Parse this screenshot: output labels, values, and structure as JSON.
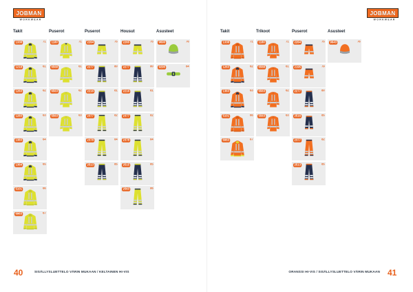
{
  "logo": {
    "brand": "JOBMAN",
    "sub": "WORKWEAR"
  },
  "palette": {
    "accent": "#e8611d",
    "yellow": "#dde02f",
    "yellow_dark": "#c2c832",
    "orange": "#f26f21",
    "orange_dark": "#d85a14",
    "navy": "#25304d",
    "green": "#9acb3c",
    "gray": "#9aa0a6",
    "stripe": "#c9cdd3",
    "stripe_on_dark": "#dfe3e8",
    "cell_bg": "#ececec",
    "header_text": "#1d2733"
  },
  "pages": [
    {
      "side": "left",
      "page_number": "40",
      "footer_caption": "SISÄLLYSLUETTELO VÄRIN MUKAAN / KELTAINEN HI-VIS",
      "columns": [
        {
          "label": "Takit"
        },
        {
          "label": "Puserot"
        },
        {
          "label": "Puserot"
        },
        {
          "label": "Housut"
        },
        {
          "label": "Asusteet"
        }
      ],
      "products": [
        {
          "code": "1338",
          "ref": "71",
          "col": 1,
          "row": 1,
          "type": "jacket",
          "main": "yellow",
          "accent2": "navy"
        },
        {
          "code": "1218",
          "ref": "61",
          "col": 1,
          "row": 2,
          "type": "jacket",
          "main": "yellow",
          "accent2": "navy"
        },
        {
          "code": "1263",
          "ref": "62",
          "col": 1,
          "row": 3,
          "type": "jacket",
          "main": "yellow",
          "accent2": "navy"
        },
        {
          "code": "1283",
          "ref": "63",
          "col": 1,
          "row": 4,
          "type": "jacket",
          "main": "yellow",
          "accent2": "navy"
        },
        {
          "code": "1383",
          "ref": "64",
          "col": 1,
          "row": 5,
          "type": "jacket",
          "main": "yellow",
          "accent2": "navy"
        },
        {
          "code": "1364",
          "ref": "65",
          "col": 1,
          "row": 6,
          "type": "jacket",
          "main": "yellow",
          "accent2": "navy"
        },
        {
          "code": "5101",
          "ref": "66",
          "col": 1,
          "row": 7,
          "type": "jacket",
          "main": "yellow",
          "accent2": "yellow_dark"
        },
        {
          "code": "6963",
          "ref": "67",
          "col": 1,
          "row": 8,
          "type": "jacket",
          "main": "yellow",
          "accent2": "yellow_dark"
        },
        {
          "code": "1180",
          "ref": "71",
          "col": 2,
          "row": 1,
          "type": "shirt",
          "main": "yellow",
          "accent2": "navy"
        },
        {
          "code": "6568",
          "ref": "61",
          "col": 2,
          "row": 2,
          "type": "shirt",
          "main": "yellow",
          "accent2": "yellow_dark"
        },
        {
          "code": "6563",
          "ref": "62",
          "col": 2,
          "row": 3,
          "type": "shirt",
          "main": "yellow",
          "accent2": "yellow_dark"
        },
        {
          "code": "5563",
          "ref": "63",
          "col": 2,
          "row": 4,
          "type": "shirt",
          "main": "yellow",
          "accent2": "yellow_dark"
        },
        {
          "code": "2264",
          "ref": "75",
          "col": 3,
          "row": 1,
          "type": "shorts",
          "main": "yellow",
          "accent2": "navy"
        },
        {
          "code": "2277",
          "ref": "80",
          "col": 3,
          "row": 2,
          "type": "trousers",
          "main": "navy",
          "accent2": "yellow"
        },
        {
          "code": "2216",
          "ref": "81",
          "col": 3,
          "row": 3,
          "type": "trousers",
          "main": "navy",
          "accent2": "yellow"
        },
        {
          "code": "2377",
          "ref": "82",
          "col": 3,
          "row": 4,
          "type": "trousers",
          "main": "yellow",
          "accent2": "navy"
        },
        {
          "code": "2378",
          "ref": "84",
          "col": 3,
          "row": 5,
          "type": "trousers",
          "main": "yellow",
          "accent2": "navy"
        },
        {
          "code": "2513",
          "ref": "85",
          "col": 3,
          "row": 6,
          "type": "trousers",
          "main": "navy",
          "accent2": "yellow"
        },
        {
          "code": "2265",
          "ref": "75",
          "col": 4,
          "row": 1,
          "type": "shorts",
          "main": "yellow",
          "accent2": "navy"
        },
        {
          "code": "2277",
          "ref": "80",
          "col": 4,
          "row": 2,
          "type": "trousers",
          "main": "navy",
          "accent2": "yellow"
        },
        {
          "code": "2216",
          "ref": "81",
          "col": 4,
          "row": 3,
          "type": "trousers",
          "main": "navy",
          "accent2": "yellow"
        },
        {
          "code": "2377",
          "ref": "82",
          "col": 4,
          "row": 4,
          "type": "trousers",
          "main": "yellow",
          "accent2": "navy"
        },
        {
          "code": "2378",
          "ref": "84",
          "col": 4,
          "row": 5,
          "type": "trousers",
          "main": "yellow",
          "accent2": "navy"
        },
        {
          "code": "2515",
          "ref": "85",
          "col": 4,
          "row": 6,
          "type": "trousers",
          "main": "navy",
          "accent2": "yellow"
        },
        {
          "code": "2563",
          "ref": "86",
          "col": 4,
          "row": 7,
          "type": "trousers",
          "main": "yellow",
          "accent2": "navy"
        },
        {
          "code": "9690",
          "ref": "76",
          "col": 5,
          "row": 1,
          "type": "beanie",
          "main": "green",
          "accent2": "gray"
        },
        {
          "code": "9290",
          "ref": "84",
          "col": 5,
          "row": 2,
          "type": "belt",
          "main": "green",
          "accent2": "navy"
        }
      ]
    },
    {
      "side": "right",
      "page_number": "41",
      "footer_caption": "ORANSSI HI-VIS / SISÄLLYSLUETTELO VÄRIN MUKAAN",
      "columns": [
        {
          "label": "Takit"
        },
        {
          "label": "Trikoot"
        },
        {
          "label": "Puserot"
        },
        {
          "label": "Asusteet"
        }
      ],
      "products": [
        {
          "code": "1338",
          "ref": "71",
          "col": 1,
          "row": 1,
          "type": "jacket",
          "main": "orange",
          "accent2": "orange_dark"
        },
        {
          "code": "1263",
          "ref": "62",
          "col": 1,
          "row": 2,
          "type": "jacket",
          "main": "orange",
          "accent2": "navy"
        },
        {
          "code": "1363",
          "ref": "63",
          "col": 1,
          "row": 3,
          "type": "jacket",
          "main": "orange",
          "accent2": "navy"
        },
        {
          "code": "5101",
          "ref": "66",
          "col": 1,
          "row": 4,
          "type": "jacket",
          "main": "orange",
          "accent2": "orange_dark"
        },
        {
          "code": "6963",
          "ref": "67",
          "col": 1,
          "row": 5,
          "type": "jacket",
          "main": "orange",
          "accent2": "yellow"
        },
        {
          "code": "1180",
          "ref": "71",
          "col": 2,
          "row": 1,
          "type": "shirt",
          "main": "orange",
          "accent2": "orange_dark"
        },
        {
          "code": "6568",
          "ref": "61",
          "col": 2,
          "row": 2,
          "type": "shirt",
          "main": "orange",
          "accent2": "orange_dark"
        },
        {
          "code": "6563",
          "ref": "62",
          "col": 2,
          "row": 3,
          "type": "shirt",
          "main": "orange",
          "accent2": "orange_dark"
        },
        {
          "code": "5563",
          "ref": "63",
          "col": 2,
          "row": 4,
          "type": "shirt",
          "main": "orange",
          "accent2": "orange_dark"
        },
        {
          "code": "2264",
          "ref": "75",
          "col": 3,
          "row": 1,
          "type": "shorts",
          "main": "orange",
          "accent2": "navy"
        },
        {
          "code": "2195",
          "ref": "79",
          "col": 3,
          "row": 2,
          "type": "shorts",
          "main": "orange",
          "accent2": "navy"
        },
        {
          "code": "2277",
          "ref": "80",
          "col": 3,
          "row": 3,
          "type": "trousers",
          "main": "navy",
          "accent2": "orange"
        },
        {
          "code": "2516",
          "ref": "85",
          "col": 3,
          "row": 4,
          "type": "capri",
          "main": "navy",
          "accent2": "orange"
        },
        {
          "code": "2377",
          "ref": "82",
          "col": 3,
          "row": 5,
          "type": "trousers",
          "main": "orange",
          "accent2": "navy"
        },
        {
          "code": "2513",
          "ref": "85",
          "col": 3,
          "row": 6,
          "type": "trousers",
          "main": "navy",
          "accent2": "orange"
        },
        {
          "code": "9643",
          "ref": "76",
          "col": 4,
          "row": 1,
          "type": "beanie",
          "main": "orange",
          "accent2": "gray"
        }
      ]
    }
  ]
}
